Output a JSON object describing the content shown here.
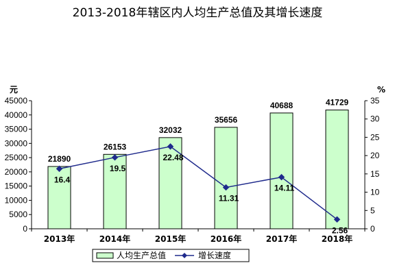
{
  "chart_data": {
    "type": "bar",
    "title": "2013-2018年辖区内人均生产总值及其增长速度",
    "categories": [
      "2013年",
      "2014年",
      "2015年",
      "2016年",
      "2017年",
      "2018年"
    ],
    "y_left_label": "元",
    "y_right_label": "%",
    "ylim_left": [
      0,
      45000
    ],
    "ylim_right": [
      0,
      35
    ],
    "y_left_ticks": [
      "0",
      "5000",
      "10000",
      "15000",
      "20000",
      "25000",
      "30000",
      "35000",
      "40000",
      "45000"
    ],
    "y_right_ticks": [
      "0",
      "5",
      "10",
      "15",
      "20",
      "25",
      "30",
      "35"
    ],
    "series": [
      {
        "name": "人均生产总值",
        "type": "bar",
        "axis": "left",
        "values": [
          21890,
          26153,
          32032,
          35656,
          40688,
          41729
        ],
        "labels": [
          "21890",
          "26153",
          "32032",
          "35656",
          "40688",
          "41729"
        ],
        "color": "#ccffcc",
        "stroke": "#000000"
      },
      {
        "name": "增长速度",
        "type": "line",
        "axis": "right",
        "values": [
          16.4,
          19.5,
          22.48,
          11.31,
          14.11,
          2.56
        ],
        "labels": [
          "16.4",
          "19.5",
          "22.48",
          "11.31",
          "14.11",
          "2.56"
        ],
        "color": "#1f2a8c"
      }
    ],
    "legend": {
      "position": "bottom",
      "items": [
        "人均生产总值",
        "增长速度"
      ]
    },
    "grid": false
  }
}
